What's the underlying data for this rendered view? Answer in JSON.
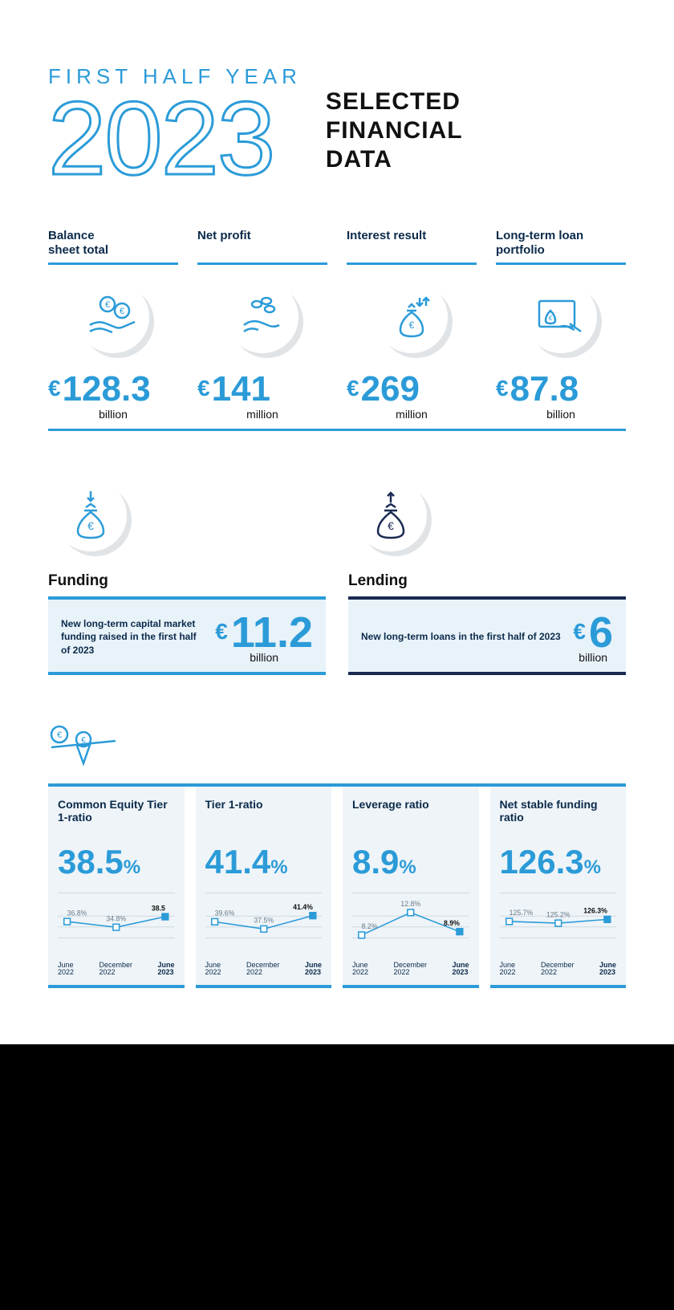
{
  "colors": {
    "accent": "#2b9bd8",
    "navy": "#1a2a52",
    "text": "#0b2a4a",
    "panel": "#eef4f8",
    "panel_light": "#e8f2f9",
    "icon_shadow": "#e1e4e7",
    "grid": "#cfd9e0"
  },
  "header": {
    "kicker": "FIRST HALF YEAR",
    "year": "2023",
    "title_l1": "SELECTED",
    "title_l2": "FINANCIAL",
    "title_l3": "DATA"
  },
  "kpis": [
    {
      "label_l1": "Balance",
      "label_l2": "sheet total",
      "icon": "hands-coins",
      "currency": "€",
      "value": "128.3",
      "unit": "billion"
    },
    {
      "label_l1": "Net profit",
      "label_l2": "",
      "icon": "hand-coins",
      "currency": "€",
      "value": "141",
      "unit": "million"
    },
    {
      "label_l1": "Interest result",
      "label_l2": "",
      "icon": "bag-updown",
      "currency": "€",
      "value": "269",
      "unit": "million"
    },
    {
      "label_l1": "Long-term loan",
      "label_l2": "portfolio",
      "icon": "tablet-hand",
      "currency": "€",
      "value": "87.8",
      "unit": "billion"
    }
  ],
  "funding": {
    "icon": "bag-in",
    "title": "Funding",
    "desc": "New long-term capital market funding raised in the first half of 2023",
    "currency": "€",
    "value": "11.2",
    "unit": "billion",
    "border_color": "#2b9bd8"
  },
  "lending": {
    "icon": "bag-out",
    "title": "Lending",
    "desc": "New long-term loans in the first half of 2023",
    "currency": "€",
    "value": "6",
    "unit": "billion",
    "border_color": "#1a2a52"
  },
  "ratios_icon": "scale",
  "ratios_axis": [
    {
      "l1": "June",
      "l2": "2022",
      "bold": false
    },
    {
      "l1": "December",
      "l2": "2022",
      "bold": false
    },
    {
      "l1": "June",
      "l2": "2023",
      "bold": true
    }
  ],
  "ratios": [
    {
      "title": "Common Equity Tier 1-ratio",
      "value": "38.5",
      "unit": "%",
      "chart": {
        "type": "line",
        "ylim": [
          30,
          42
        ],
        "points": [
          {
            "label": "36.8%",
            "v": 36.8,
            "marker": "open"
          },
          {
            "label": "34.8%",
            "v": 34.8,
            "marker": "open"
          },
          {
            "label": "38.5",
            "v": 38.5,
            "marker": "solid"
          }
        ],
        "line_color": "#2b9bd8",
        "marker_open_fill": "#ffffff",
        "marker_solid_fill": "#2b9bd8",
        "label_fontsize": 9,
        "label_color": "#6b7b88"
      }
    },
    {
      "title": "Tier 1-ratio",
      "value": "41.4",
      "unit": "%",
      "chart": {
        "type": "line",
        "ylim": [
          34,
          44
        ],
        "points": [
          {
            "label": "39.6%",
            "v": 39.6,
            "marker": "open"
          },
          {
            "label": "37.5%",
            "v": 37.5,
            "marker": "open"
          },
          {
            "label": "41.4%",
            "v": 41.4,
            "marker": "solid"
          }
        ],
        "line_color": "#2b9bd8",
        "marker_open_fill": "#ffffff",
        "marker_solid_fill": "#2b9bd8",
        "label_fontsize": 9,
        "label_color": "#6b7b88"
      }
    },
    {
      "title": "Leverage ratio",
      "value": "8.9",
      "unit": "%",
      "chart": {
        "type": "line",
        "ylim": [
          7,
          14
        ],
        "points": [
          {
            "label": "8.2%",
            "v": 8.2,
            "marker": "open"
          },
          {
            "label": "12.8%",
            "v": 12.8,
            "marker": "open"
          },
          {
            "label": "8.9%",
            "v": 8.9,
            "marker": "solid"
          }
        ],
        "line_color": "#2b9bd8",
        "marker_open_fill": "#ffffff",
        "marker_solid_fill": "#2b9bd8",
        "label_fontsize": 9,
        "label_color": "#6b7b88"
      }
    },
    {
      "title": "Net stable funding ratio",
      "value": "126.3",
      "unit": "%",
      "chart": {
        "type": "line",
        "ylim": [
          120,
          130
        ],
        "points": [
          {
            "label": "125.7%",
            "v": 125.7,
            "marker": "open"
          },
          {
            "label": "125.2%",
            "v": 125.2,
            "marker": "open"
          },
          {
            "label": "126.3%",
            "v": 126.3,
            "marker": "solid"
          }
        ],
        "line_color": "#2b9bd8",
        "marker_open_fill": "#ffffff",
        "marker_solid_fill": "#2b9bd8",
        "label_fontsize": 9,
        "label_color": "#6b7b88"
      }
    }
  ]
}
